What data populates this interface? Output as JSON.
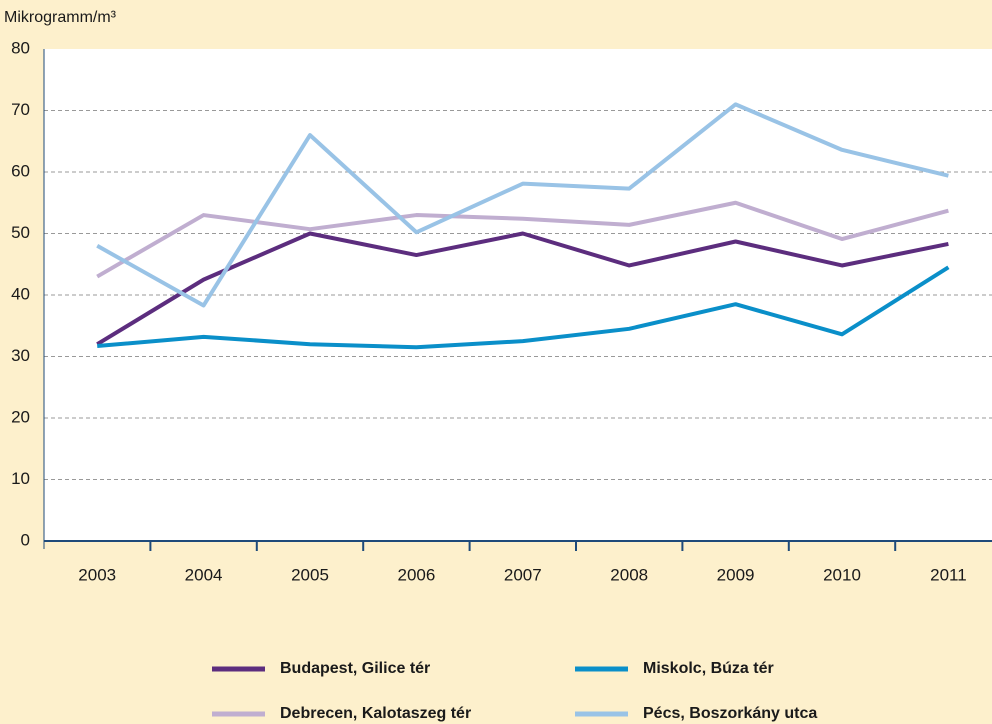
{
  "chart_data": {
    "type": "line",
    "y_label": "Mikrogramm/m³",
    "categories": [
      "2003",
      "2004",
      "2005",
      "2006",
      "2007",
      "2008",
      "2009",
      "2010",
      "2011"
    ],
    "series": [
      {
        "name": "Budapest, Gilice tér",
        "color": "#5c2d7e",
        "values": [
          32,
          42.5,
          50,
          46.5,
          50,
          44.8,
          48.7,
          44.8,
          48.3
        ]
      },
      {
        "name": "Miskolc, Búza tér",
        "color": "#0a8fc9",
        "values": [
          31.7,
          33.2,
          32,
          31.5,
          32.5,
          34.5,
          38.5,
          33.6,
          44.5
        ]
      },
      {
        "name": "Debrecen, Kalotaszeg tér",
        "color": "#c0aed0",
        "values": [
          43,
          53,
          50.7,
          53,
          52.4,
          51.4,
          55,
          49.1,
          53.7
        ]
      },
      {
        "name": "Pécs, Boszorkány utca",
        "color": "#99c3e6",
        "values": [
          48,
          38.3,
          66,
          50.2,
          58.1,
          57.3,
          71,
          63.6,
          59.4
        ]
      }
    ],
    "ylim": [
      0,
      80
    ],
    "yticks": [
      0,
      10,
      20,
      30,
      40,
      50,
      60,
      70,
      80
    ],
    "grid": true
  }
}
